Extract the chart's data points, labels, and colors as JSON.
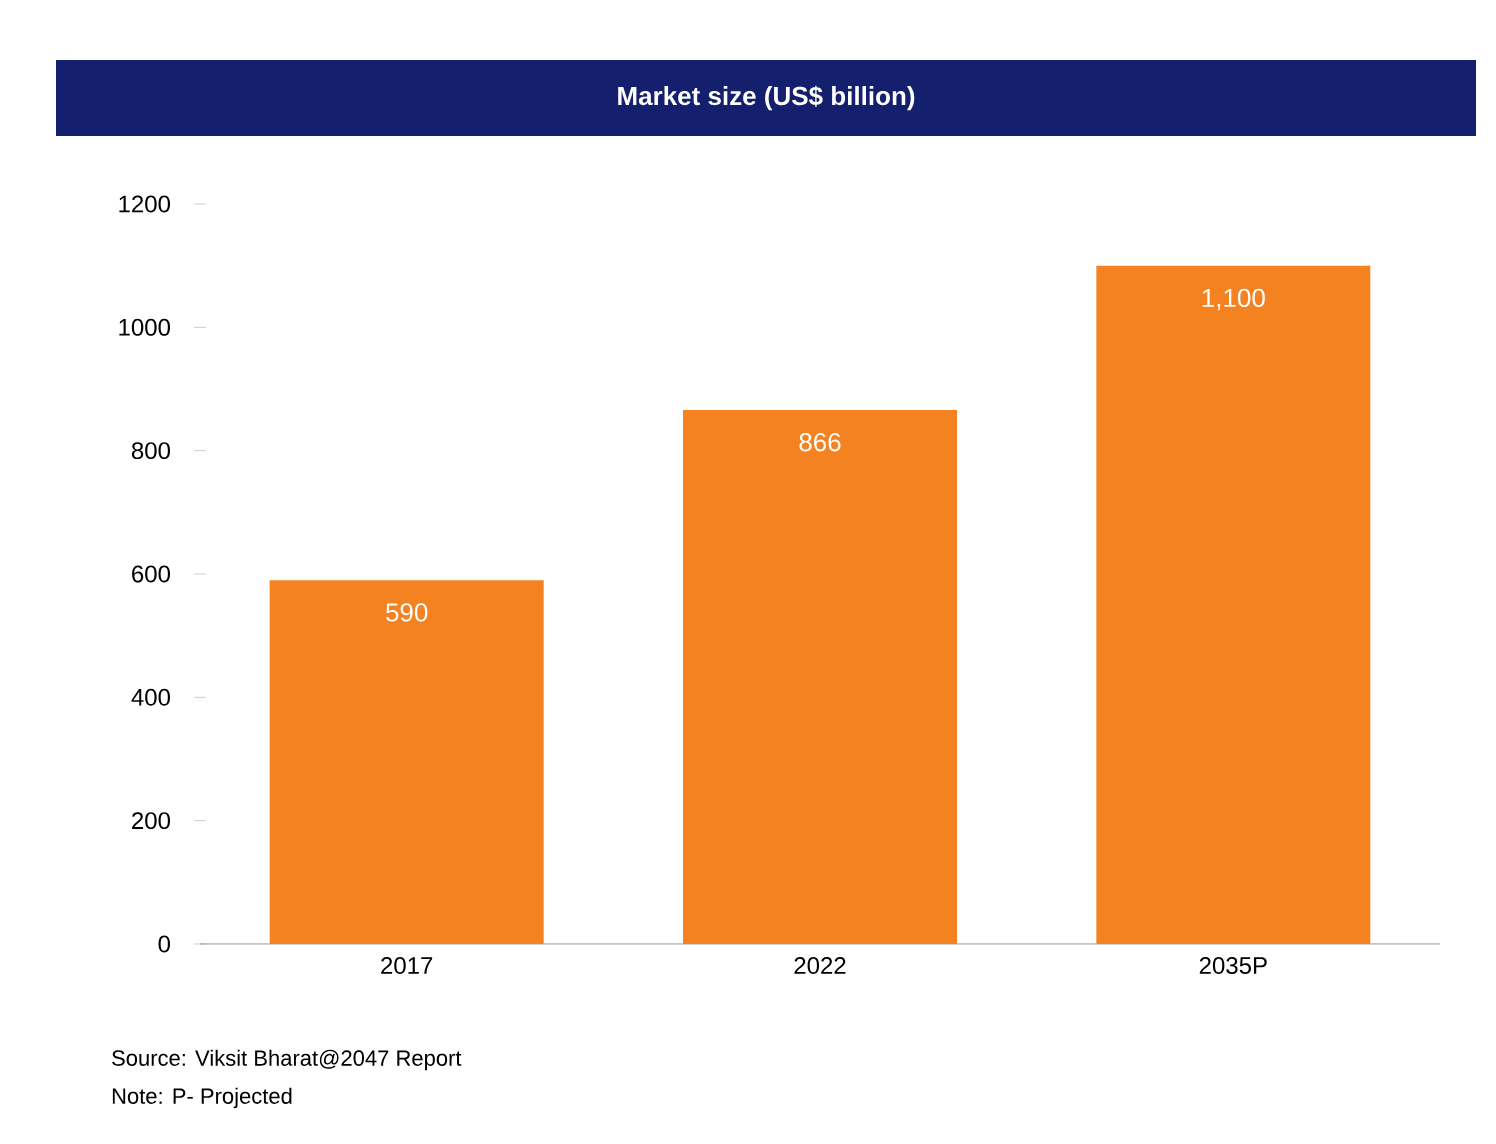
{
  "chart_data": {
    "type": "bar",
    "title": "Market size (US$ billion)",
    "categories": [
      "2017",
      "2022",
      "2035P"
    ],
    "values": [
      590,
      866,
      1100
    ],
    "value_labels": [
      "590",
      "866",
      "1,100"
    ],
    "color": "#f58220",
    "ylim": [
      0,
      1200
    ],
    "yticks": [
      0,
      200,
      400,
      600,
      800,
      1000,
      1200
    ],
    "annotations": [
      "Source: Viksit Bharat@2047 Report",
      "Note: P- Projected"
    ]
  }
}
